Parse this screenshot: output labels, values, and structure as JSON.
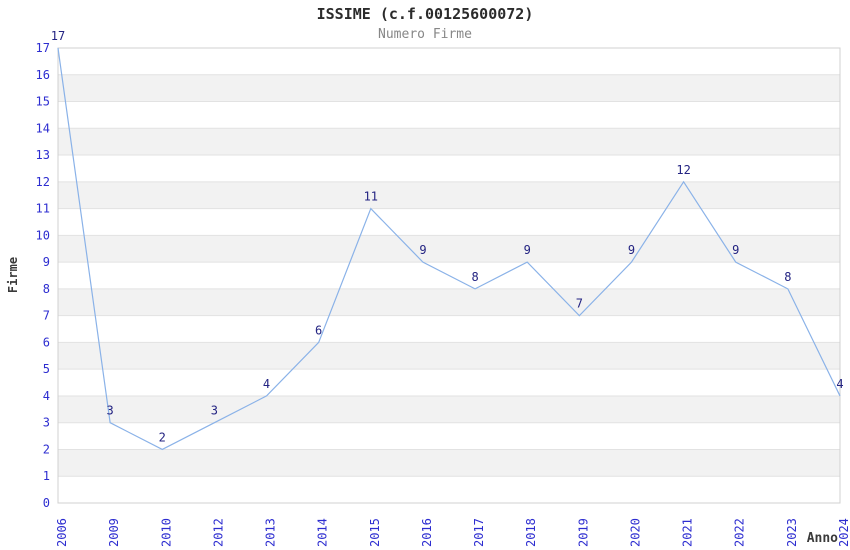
{
  "header": {
    "title": "ISSIME (c.f.00125600072)",
    "subtitle": "Numero Firme"
  },
  "chart_data": {
    "type": "line",
    "title": "ISSIME (c.f.00125600072)",
    "subtitle": "Numero Firme",
    "xlabel": "Anno",
    "ylabel": "Firme",
    "categories": [
      "2006",
      "2009",
      "2010",
      "2012",
      "2013",
      "2014",
      "2015",
      "2016",
      "2017",
      "2018",
      "2019",
      "2020",
      "2021",
      "2022",
      "2023",
      "2024"
    ],
    "values": [
      17,
      3,
      2,
      3,
      4,
      6,
      11,
      9,
      8,
      9,
      7,
      9,
      12,
      9,
      8,
      4
    ],
    "point_labels_shown": true,
    "ylim": [
      0,
      17
    ],
    "y_ticks": [
      0,
      1,
      2,
      3,
      4,
      5,
      6,
      7,
      8,
      9,
      10,
      11,
      12,
      13,
      14,
      15,
      16,
      17
    ],
    "legend": "none",
    "grid": "alternating horizontal bands with gridline at every integer",
    "colors": {
      "line": "#8ab2e8",
      "band": "#f2f2f2",
      "grid_line": "#e2e2e2",
      "plot_border": "#d0d0d0",
      "tick_label": "#2d2dd0",
      "point_label": "#232382",
      "title": "#2b2b2b",
      "subtitle": "#878787",
      "axis_label": "#3a3a3a",
      "background": "#ffffff"
    }
  }
}
